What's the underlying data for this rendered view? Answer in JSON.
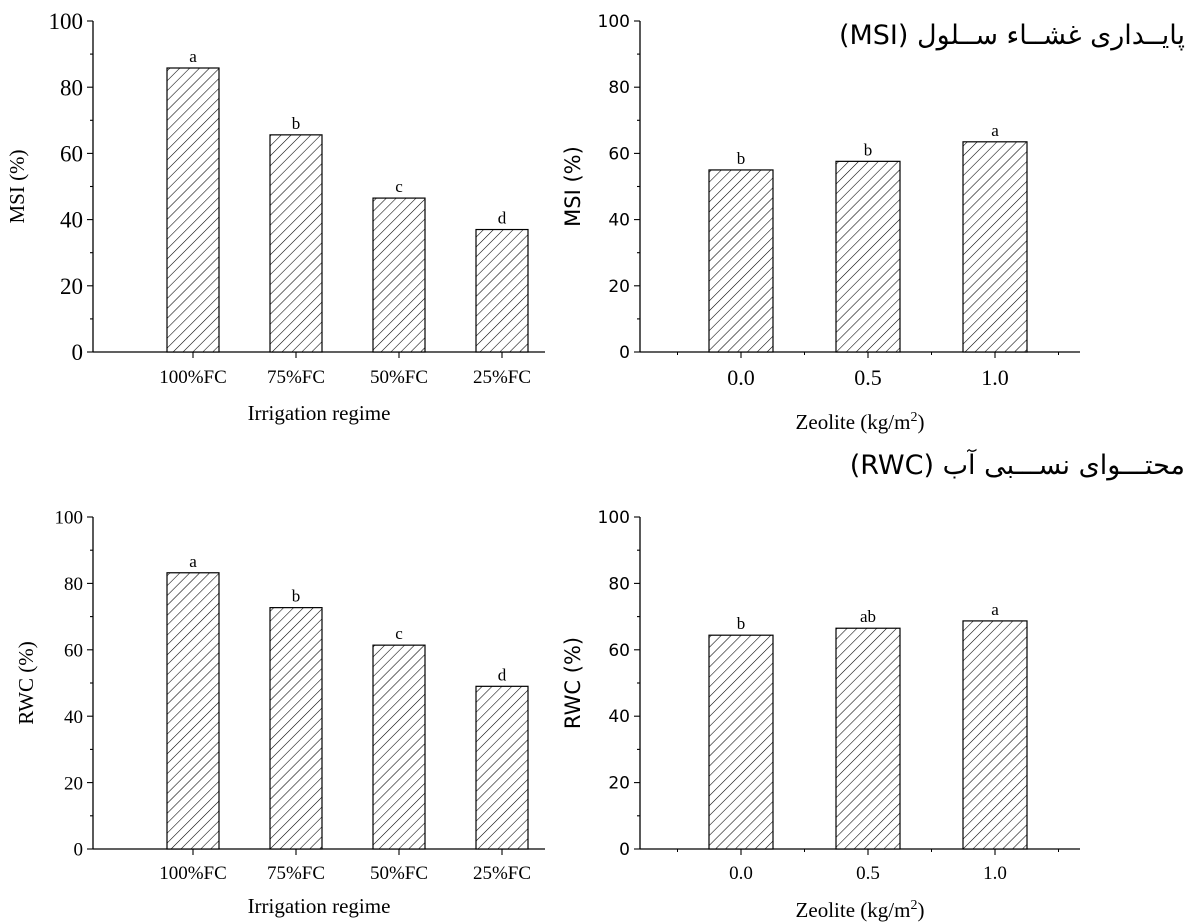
{
  "section_titles": {
    "msi": "پایــداری غشــاء ســلول (MSI)",
    "rwc": "محتـــوای نســـبی آب (RWC)"
  },
  "chart_data": [
    {
      "type": "bar",
      "categories": [
        "100%FC",
        "75%FC",
        "50%FC",
        "25%FC"
      ],
      "values": [
        85.8,
        65.6,
        46.5,
        37.0
      ],
      "letters": [
        "a",
        "b",
        "c",
        "d"
      ],
      "xlabel": "Irrigation regime",
      "ylabel": "MSI (%)",
      "ylim": [
        0,
        100
      ],
      "yticks": [
        "0",
        "20",
        "40",
        "60",
        "80",
        "100"
      ],
      "grid": false
    },
    {
      "type": "bar",
      "categories": [
        "0.0",
        "0.5",
        "1.0"
      ],
      "values": [
        55.0,
        57.6,
        63.5
      ],
      "letters": [
        "b",
        "b",
        "a"
      ],
      "xlabel": "Zeolite (kg/m",
      "xlabel_sup": "2",
      "xlabel_close": ")",
      "ylabel": "MSI (%)",
      "ylim": [
        0,
        100
      ],
      "yticks": [
        "0",
        "20",
        "40",
        "60",
        "80",
        "100"
      ],
      "grid": false
    },
    {
      "type": "bar",
      "categories": [
        "100%FC",
        "75%FC",
        "50%FC",
        "25%FC"
      ],
      "values": [
        83.2,
        72.7,
        61.4,
        49.0
      ],
      "letters": [
        "a",
        "b",
        "c",
        "d"
      ],
      "xlabel": "Irrigation regime",
      "ylabel": "RWC (%)",
      "ylim": [
        0,
        100
      ],
      "yticks": [
        "0",
        "20",
        "40",
        "60",
        "80",
        "100"
      ],
      "grid": false
    },
    {
      "type": "bar",
      "categories": [
        "0.0",
        "0.5",
        "1.0"
      ],
      "values": [
        64.4,
        66.5,
        68.7
      ],
      "letters": [
        "b",
        "ab",
        "a"
      ],
      "xlabel": "Zeolite (kg/m",
      "xlabel_sup": "2",
      "xlabel_close": ")",
      "ylabel": "RWC (%)",
      "ylim": [
        0,
        100
      ],
      "yticks": [
        "0",
        "20",
        "40",
        "60",
        "80",
        "100"
      ],
      "grid": false
    }
  ]
}
